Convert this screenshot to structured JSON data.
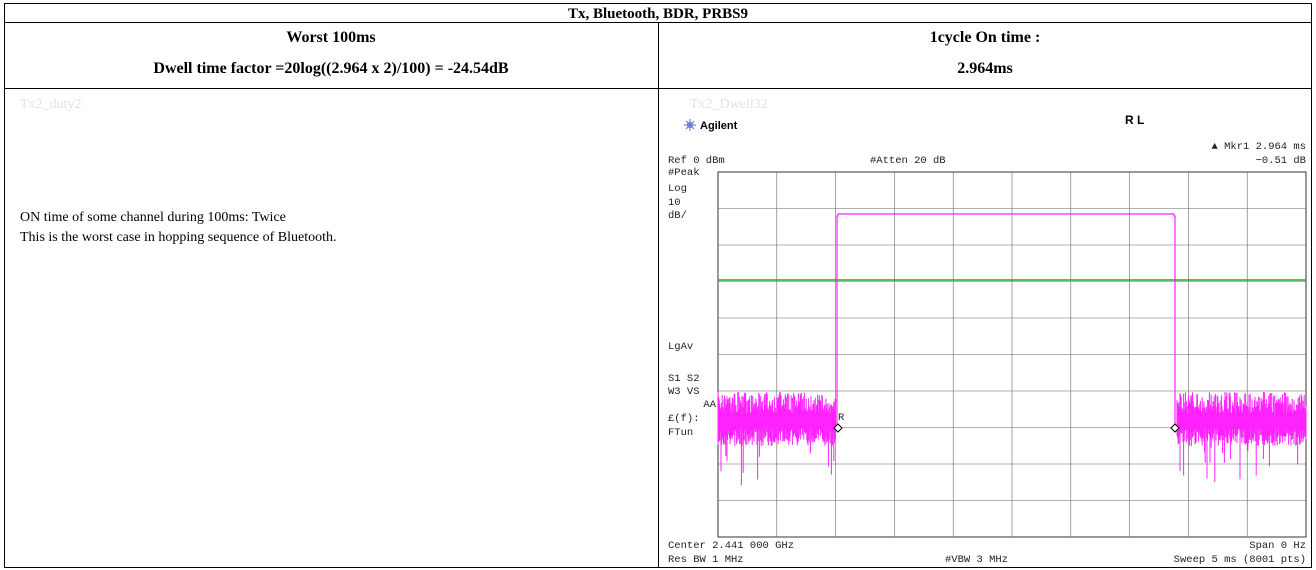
{
  "title": "Tx, Bluetooth, BDR, PRBS9",
  "header": {
    "left": [
      "Worst 100ms",
      "Dwell time factor =20log((2.964 x 2)/100) = -24.54dB"
    ],
    "right": [
      "1cycle On time :",
      "2.964ms"
    ]
  },
  "body": {
    "left_label": "Tx2_duty2",
    "left_text": [
      "ON time of some channel during 100ms: Twice",
      "This is the worst case in hopping sequence of Bluetooth."
    ],
    "right_label": "Tx2_Dwell32",
    "analyzer": {
      "brand": "Agilent",
      "status": "R L",
      "marker": "▲ Mkr1  2.964 ms",
      "marker_level": "−0.51 dB",
      "ref": "Ref 0 dBm",
      "atten": "#Atten 20 dB",
      "side": [
        "#Peak",
        "Log",
        "10",
        "dB/",
        "LgAv",
        "S1  S2",
        "W3  VS",
        "AA",
        "£(f):",
        "FTun"
      ],
      "trace_label": "R",
      "center": "Center 2.441 000 GHz",
      "span": "Span 0 Hz",
      "res_bw": "Res BW 1 MHz",
      "vbw": "#VBW 3 MHz",
      "sweep": "Sweep 5 ms (8001 pts)"
    }
  }
}
